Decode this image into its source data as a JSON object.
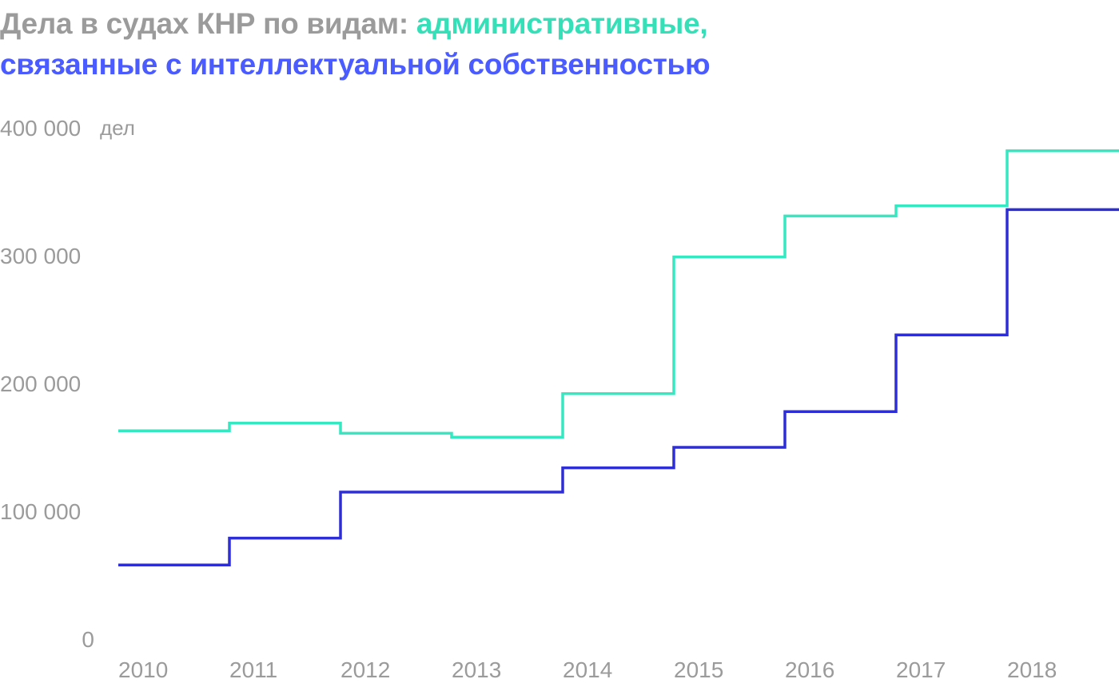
{
  "chart_data": {
    "type": "line",
    "step": true,
    "title": {
      "prefix": "Дела в судах КНР по видам: ",
      "series_1": "административные,",
      "series_2": "связанные с интеллектуальной собственностью"
    },
    "x": [
      "2010",
      "2011",
      "2012",
      "2013",
      "2014",
      "2015",
      "2016",
      "2017",
      "2018"
    ],
    "ylim": [
      0,
      400000
    ],
    "y_ticks": [
      {
        "value": 0,
        "label": "0",
        "unit": ""
      },
      {
        "value": 100000,
        "label": "100 000",
        "unit": ""
      },
      {
        "value": 200000,
        "label": "200 000",
        "unit": ""
      },
      {
        "value": 300000,
        "label": "300 000",
        "unit": ""
      },
      {
        "value": 400000,
        "label": "400 000",
        "unit": "дел"
      }
    ],
    "grid": false,
    "legend": "in title",
    "series": [
      {
        "color": "#35e8c2",
        "values": [
          163000,
          169000,
          161000,
          158000,
          192000,
          299000,
          331000,
          339000,
          382000
        ]
      },
      {
        "color": "#2e2ed6",
        "values": [
          58000,
          79000,
          115000,
          115000,
          134000,
          150000,
          178000,
          238000,
          336000
        ]
      }
    ]
  },
  "colors": {
    "title_prefix": "#9b9b9b",
    "title_series_1": "#35e0b8",
    "title_series_2": "#4a5bff",
    "axis_text": "#9b9b9b"
  }
}
